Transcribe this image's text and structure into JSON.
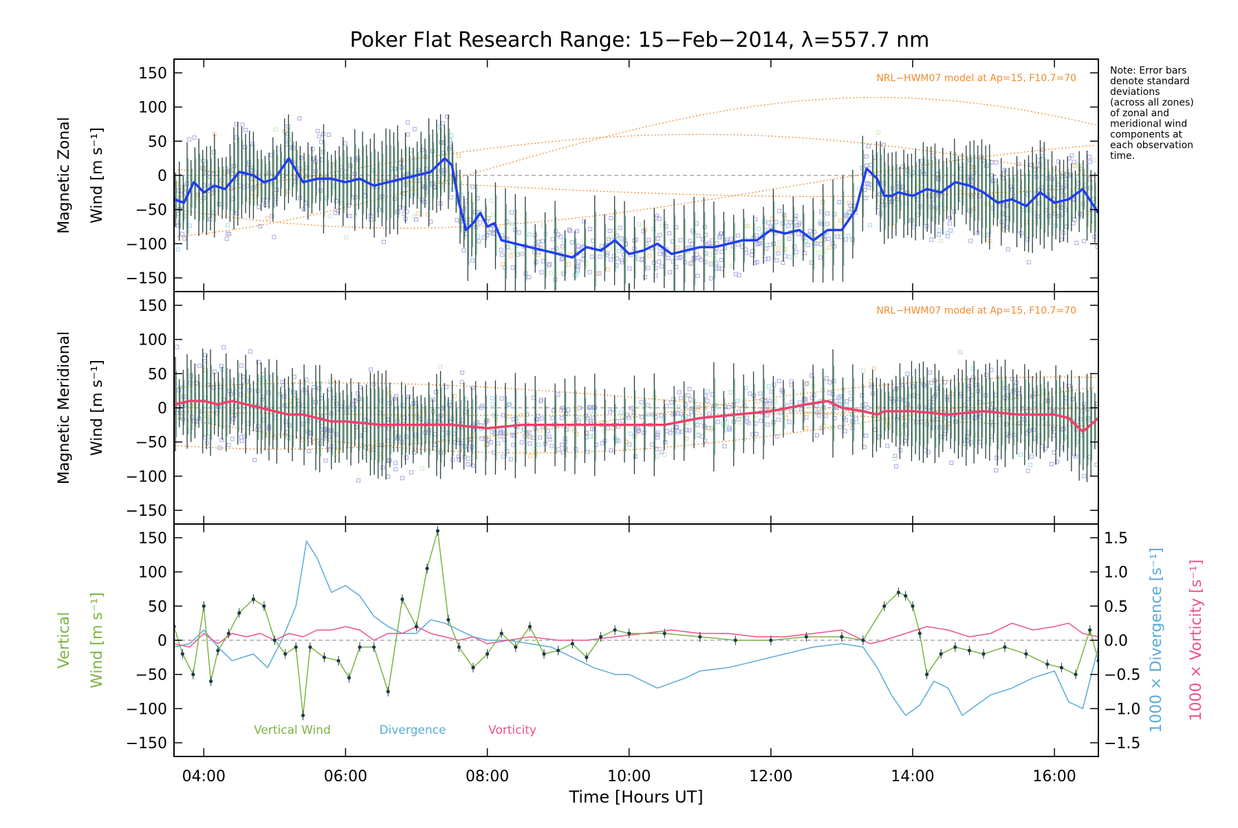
{
  "title": "Poker Flat Research Range: 15−Feb−2014, λ=557.7 nm",
  "note": [
    "Note: Error bars",
    "denote standard",
    "deviations",
    "(across all zones)",
    "of zonal and",
    "meridional wind",
    "components at",
    "each observation",
    "time."
  ],
  "colors": {
    "zonal": "#1f3ff0",
    "meridional": "#f0406a",
    "vertical": "#7cb342",
    "divergence": "#5aaad6",
    "vorticity": "#f0508a",
    "model": "#f08c30",
    "scatter": "#a9a6e2",
    "errorbar": "#243e3a"
  },
  "chart_data": [
    {
      "type": "line",
      "ylabel": [
        "Magnetic Zonal",
        "Wind [m s⁻¹]"
      ],
      "yticks": [
        "150",
        "100",
        "50",
        "0",
        "−50",
        "−100",
        "−150"
      ],
      "ylim": [
        -165,
        165
      ],
      "xlim": [
        3.58,
        16.62
      ],
      "model_label": "NRL−HWM07 model at Ap=15, F10.7=70",
      "series": [
        {
          "x": [
            3.58,
            3.72,
            3.86,
            4.0,
            4.15,
            4.3,
            4.5,
            4.7,
            4.85,
            5.0,
            5.2,
            5.4,
            5.6,
            5.8,
            6.0,
            6.2,
            6.4,
            6.6,
            6.8,
            7.0,
            7.2,
            7.4,
            7.5,
            7.6,
            7.7,
            7.8,
            7.9,
            8.0,
            8.1,
            8.2,
            8.4,
            8.6,
            8.8,
            9.0,
            9.2,
            9.4,
            9.6,
            9.8,
            10.0,
            10.2,
            10.4,
            10.6,
            10.8,
            11.0,
            11.2,
            11.4,
            11.6,
            11.8,
            12.0,
            12.2,
            12.4,
            12.6,
            12.8,
            13.0,
            13.2,
            13.35,
            13.5,
            13.6,
            13.7,
            13.8,
            14.0,
            14.2,
            14.4,
            14.6,
            14.8,
            15.0,
            15.2,
            15.4,
            15.6,
            15.8,
            16.0,
            16.2,
            16.4,
            16.62
          ],
          "y": [
            -35,
            -40,
            -10,
            -25,
            -15,
            -20,
            5,
            0,
            -10,
            -5,
            25,
            -10,
            -5,
            -5,
            -10,
            -5,
            -15,
            -10,
            -5,
            0,
            5,
            25,
            15,
            -40,
            -80,
            -70,
            -55,
            -75,
            -70,
            -95,
            -100,
            -105,
            -110,
            -115,
            -120,
            -105,
            -110,
            -95,
            -115,
            -110,
            -100,
            -115,
            -110,
            -105,
            -105,
            -100,
            -95,
            -95,
            -80,
            -85,
            -80,
            -95,
            -80,
            -80,
            -50,
            10,
            -5,
            -30,
            -30,
            -25,
            -30,
            -20,
            -25,
            -10,
            -15,
            -25,
            -40,
            -35,
            -45,
            -25,
            -40,
            -35,
            -20,
            -55
          ]
        }
      ]
    },
    {
      "type": "line",
      "ylabel": [
        "Magnetic Meridional",
        "Wind [m s⁻¹]"
      ],
      "yticks": [
        "150",
        "100",
        "50",
        "0",
        "−50",
        "−100",
        "−150"
      ],
      "ylim": [
        -165,
        165
      ],
      "xlim": [
        3.58,
        16.62
      ],
      "model_label": "NRL−HWM07 model at Ap=15, F10.7=70",
      "series": [
        {
          "x": [
            3.58,
            3.8,
            4.0,
            4.2,
            4.4,
            4.6,
            4.8,
            5.0,
            5.2,
            5.4,
            5.6,
            5.8,
            6.0,
            6.5,
            7.0,
            7.5,
            8.0,
            8.5,
            9.0,
            9.5,
            10.0,
            10.5,
            11.0,
            11.5,
            12.0,
            12.5,
            12.8,
            13.0,
            13.3,
            13.5,
            13.6,
            14.0,
            14.5,
            15.0,
            15.5,
            16.0,
            16.2,
            16.4,
            16.62
          ],
          "y": [
            5,
            10,
            10,
            5,
            10,
            5,
            0,
            -5,
            -10,
            -10,
            -15,
            -20,
            -20,
            -25,
            -25,
            -25,
            -30,
            -25,
            -25,
            -25,
            -25,
            -25,
            -15,
            -10,
            -5,
            5,
            10,
            0,
            -5,
            -10,
            -5,
            -5,
            -10,
            -5,
            -10,
            -10,
            -15,
            -35,
            -15
          ]
        }
      ]
    },
    {
      "type": "line",
      "ylabel": [
        "Vertical",
        "Wind [m s⁻¹]"
      ],
      "yticks": [
        "150",
        "100",
        "50",
        "0",
        "−50",
        "−100",
        "−150"
      ],
      "ylim": [
        -165,
        165
      ],
      "xlim": [
        3.58,
        16.62
      ],
      "y2ticks": [
        "1.5",
        "1.0",
        "0.5",
        "0.0",
        "−0.5",
        "−1.0",
        "−1.5"
      ],
      "y2label_div": "1000 × Divergence [s⁻¹]",
      "y2label_vort": "1000 × Vorticity [s⁻¹]",
      "legend": [
        "Vertical Wind",
        "Divergence",
        "Vorticity"
      ],
      "series": [
        {
          "x": [
            3.58,
            3.7,
            3.85,
            4.0,
            4.1,
            4.2,
            4.35,
            4.5,
            4.7,
            4.85,
            5.0,
            5.15,
            5.3,
            5.4,
            5.5,
            5.7,
            5.9,
            6.05,
            6.2,
            6.4,
            6.6,
            6.8,
            7.0,
            7.15,
            7.3,
            7.45,
            7.6,
            7.8,
            8.0,
            8.2,
            8.4,
            8.6,
            8.8,
            9.0,
            9.2,
            9.4,
            9.6,
            9.8,
            10.0,
            10.5,
            11.0,
            11.5,
            12.0,
            12.5,
            13.0,
            13.3,
            13.6,
            13.8,
            13.9,
            14.0,
            14.1,
            14.2,
            14.4,
            14.6,
            14.8,
            15.0,
            15.3,
            15.6,
            15.9,
            16.1,
            16.3,
            16.5,
            16.62
          ],
          "y": [
            20,
            -20,
            -50,
            50,
            -60,
            -15,
            10,
            40,
            60,
            50,
            0,
            -20,
            -10,
            -110,
            -10,
            -25,
            -30,
            -55,
            -10,
            -10,
            -75,
            60,
            20,
            105,
            160,
            30,
            -10,
            -40,
            -20,
            10,
            -10,
            20,
            -20,
            -15,
            -5,
            -25,
            5,
            15,
            10,
            10,
            5,
            0,
            0,
            5,
            5,
            0,
            50,
            70,
            65,
            50,
            10,
            -50,
            -20,
            -10,
            -15,
            -20,
            -10,
            -20,
            -35,
            -40,
            -50,
            15,
            -30
          ]
        },
        {
          "x": [
            3.58,
            3.8,
            4.0,
            4.2,
            4.4,
            4.7,
            4.9,
            5.1,
            5.3,
            5.45,
            5.6,
            5.8,
            6.0,
            6.2,
            6.4,
            6.6,
            6.8,
            7.0,
            7.2,
            7.4,
            7.6,
            7.8,
            8.0,
            8.3,
            8.6,
            8.9,
            9.2,
            9.5,
            9.8,
            10.0,
            10.4,
            10.8,
            11.0,
            11.4,
            11.8,
            12.2,
            12.6,
            13.0,
            13.3,
            13.5,
            13.7,
            13.9,
            14.1,
            14.3,
            14.5,
            14.7,
            14.9,
            15.1,
            15.4,
            15.7,
            16.0,
            16.2,
            16.4,
            16.62
          ],
          "y": [
            -10,
            -5,
            15,
            -10,
            -30,
            -20,
            -40,
            0,
            50,
            145,
            120,
            70,
            80,
            65,
            35,
            20,
            10,
            10,
            30,
            25,
            15,
            5,
            0,
            0,
            -5,
            -10,
            -25,
            -40,
            -50,
            -50,
            -70,
            -55,
            -45,
            -40,
            -30,
            -20,
            -10,
            -5,
            -10,
            -40,
            -80,
            -110,
            -95,
            -60,
            -70,
            -110,
            -95,
            -80,
            -70,
            -55,
            -45,
            -90,
            -100,
            -10
          ]
        },
        {
          "x": [
            3.58,
            3.8,
            4.0,
            4.2,
            4.4,
            4.6,
            4.8,
            5.0,
            5.2,
            5.4,
            5.6,
            5.8,
            6.0,
            6.2,
            6.4,
            6.6,
            6.8,
            7.0,
            7.2,
            7.4,
            7.6,
            7.8,
            8.0,
            8.3,
            8.6,
            9.0,
            9.4,
            9.8,
            10.2,
            10.6,
            11.0,
            11.4,
            11.8,
            12.2,
            12.6,
            13.0,
            13.4,
            13.6,
            13.9,
            14.2,
            14.5,
            14.8,
            15.1,
            15.4,
            15.7,
            16.0,
            16.2,
            16.4,
            16.62
          ],
          "y": [
            -5,
            -10,
            10,
            -5,
            10,
            5,
            10,
            0,
            10,
            5,
            15,
            15,
            20,
            15,
            0,
            10,
            10,
            20,
            10,
            5,
            0,
            5,
            -5,
            0,
            5,
            0,
            0,
            5,
            10,
            15,
            10,
            10,
            5,
            5,
            10,
            15,
            -5,
            0,
            10,
            20,
            15,
            5,
            10,
            25,
            15,
            20,
            25,
            10,
            5
          ]
        }
      ]
    }
  ]
}
